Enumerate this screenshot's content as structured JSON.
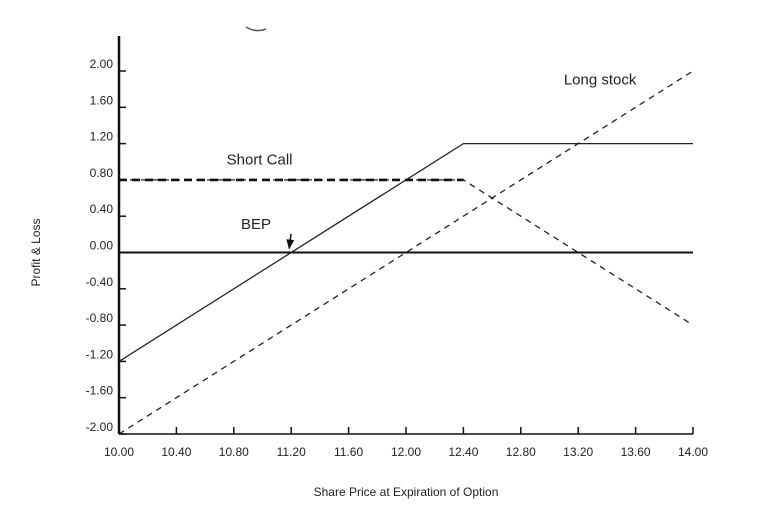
{
  "chart_data": {
    "type": "line",
    "title": "",
    "xlabel": "Share Price at Expiration of Option",
    "ylabel": "Profit & Loss",
    "xlim": [
      10.0,
      14.0
    ],
    "ylim": [
      -2.0,
      2.0
    ],
    "x_ticks": [
      "10.00",
      "10.40",
      "10.80",
      "11.20",
      "11.60",
      "12.00",
      "12.40",
      "12.80",
      "13.20",
      "13.60",
      "14.00"
    ],
    "y_ticks": [
      "2.00",
      "1.60",
      "1.20",
      "0.80",
      "0.40",
      "0.00",
      "-0.40",
      "-0.80",
      "-1.20",
      "-1.60",
      "-2.00"
    ],
    "grid": false,
    "series": [
      {
        "name": "Long stock",
        "style": "dashed",
        "color": "#222222",
        "x": [
          10.0,
          14.0
        ],
        "y": [
          -2.0,
          2.0
        ]
      },
      {
        "name": "Short Call",
        "style": "dashed",
        "color": "#222222",
        "x": [
          10.0,
          12.4,
          14.0
        ],
        "y": [
          0.8,
          0.8,
          -0.8
        ]
      },
      {
        "name": "",
        "style": "solid",
        "color": "#222222",
        "x": [
          10.0,
          12.4,
          14.0
        ],
        "y": [
          -1.2,
          1.2,
          1.2
        ]
      }
    ],
    "annotations": [
      {
        "text": "Long stock",
        "x": 13.1,
        "y": 1.85
      },
      {
        "text": "Short Call",
        "x": 10.75,
        "y": 0.97
      },
      {
        "text": "BEP",
        "x": 10.85,
        "y": 0.26,
        "arrow_to": [
          11.2,
          0.0
        ]
      }
    ],
    "zero_line": true
  }
}
